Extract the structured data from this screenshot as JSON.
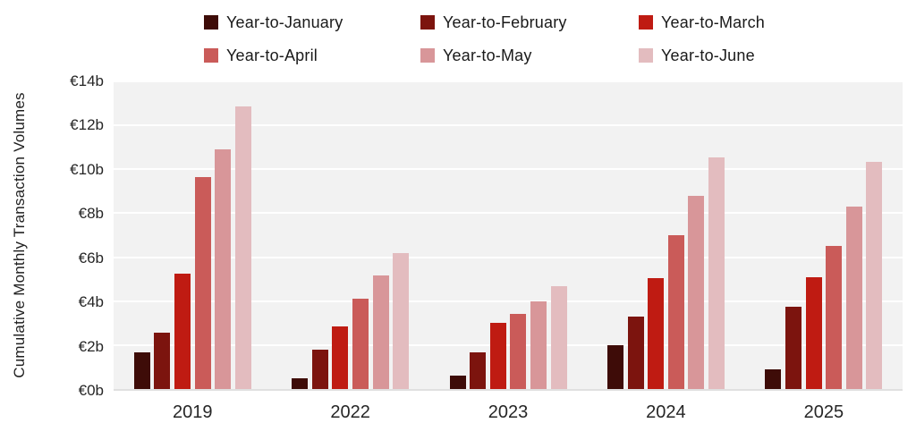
{
  "chart_data": {
    "type": "bar",
    "title": "",
    "xlabel": "",
    "ylabel": "Cumulative Monthly Transaction Volumes",
    "categories": [
      "2019",
      "2022",
      "2023",
      "2024",
      "2025"
    ],
    "series": [
      {
        "name": "Year-to-January",
        "color": "#3E0C08",
        "values": [
          1.65,
          0.5,
          0.6,
          2.0,
          0.9
        ]
      },
      {
        "name": "Year-to-February",
        "color": "#7C140E",
        "values": [
          2.55,
          1.8,
          1.65,
          3.3,
          3.75
        ]
      },
      {
        "name": "Year-to-March",
        "color": "#BF1B12",
        "values": [
          5.25,
          2.85,
          3.0,
          5.05,
          5.1
        ]
      },
      {
        "name": "Year-to-April",
        "color": "#CA5B59",
        "values": [
          9.65,
          4.1,
          3.4,
          7.0,
          6.5
        ]
      },
      {
        "name": "Year-to-May",
        "color": "#D89699",
        "values": [
          10.9,
          5.15,
          4.0,
          8.8,
          8.3
        ]
      },
      {
        "name": "Year-to-June",
        "color": "#E3BCBF",
        "values": [
          12.85,
          6.2,
          4.7,
          10.55,
          10.35
        ]
      }
    ],
    "y_axis": {
      "min": 0,
      "max": 14,
      "step": 2,
      "tick_labels": [
        "€0b",
        "€2b",
        "€4b",
        "€6b",
        "€8b",
        "€10b",
        "€12b",
        "€14b"
      ]
    },
    "grid": true,
    "legend_position": "top",
    "colors": {
      "plot_background": "#F2F2F2",
      "gridline": "#FFFFFF",
      "axis_line": "#E0E0E0",
      "text": "#1A1A1A"
    }
  }
}
